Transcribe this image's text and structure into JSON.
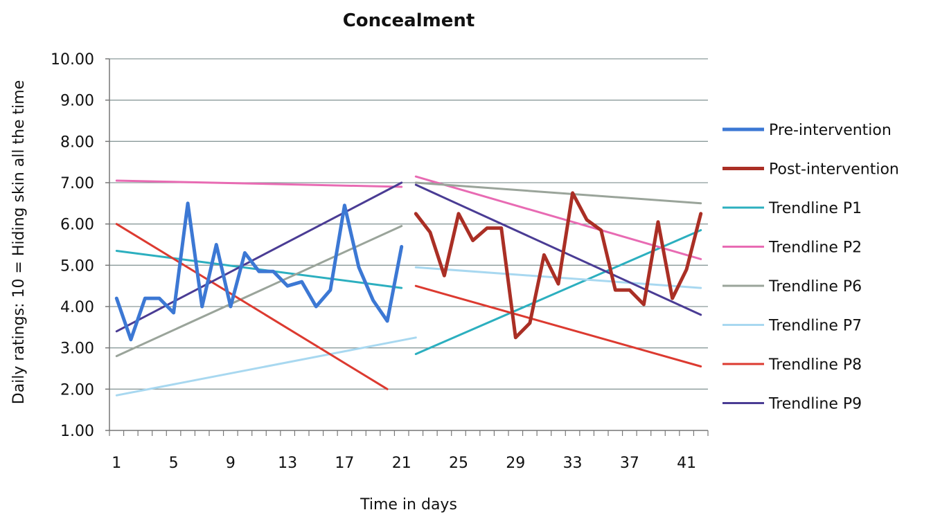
{
  "chart_data": {
    "type": "line",
    "title": "Concealment",
    "xlabel": "Time in days",
    "ylabel": "Daily ratings: 10 = Hiding skin all the time",
    "xlim": [
      1,
      42
    ],
    "ylim": [
      1,
      10
    ],
    "x_ticks": [
      "1",
      "5",
      "9",
      "13",
      "17",
      "21",
      "25",
      "29",
      "33",
      "37",
      "41"
    ],
    "y_ticks": [
      "1.00",
      "2.00",
      "3.00",
      "4.00",
      "5.00",
      "6.00",
      "7.00",
      "8.00",
      "9.00",
      "10.00"
    ],
    "grid": true,
    "legend_position": "right",
    "series": [
      {
        "name": "Pre-intervention",
        "color": "#3c78d4",
        "width": 5,
        "points": [
          [
            1,
            4.2
          ],
          [
            2,
            3.2
          ],
          [
            3,
            4.2
          ],
          [
            4,
            4.2
          ],
          [
            5,
            3.85
          ],
          [
            6,
            6.5
          ],
          [
            7,
            4.0
          ],
          [
            8,
            5.5
          ],
          [
            9,
            4.0
          ],
          [
            10,
            5.3
          ],
          [
            11,
            4.85
          ],
          [
            12,
            4.85
          ],
          [
            13,
            4.5
          ],
          [
            14,
            4.6
          ],
          [
            15,
            4.0
          ],
          [
            16,
            4.4
          ],
          [
            17,
            6.45
          ],
          [
            18,
            4.95
          ],
          [
            19,
            4.15
          ],
          [
            20,
            3.65
          ],
          [
            21,
            5.45
          ]
        ]
      },
      {
        "name": "Post-intervention",
        "color": "#aa2f25",
        "width": 5,
        "points": [
          [
            22,
            6.25
          ],
          [
            23,
            5.8
          ],
          [
            24,
            4.75
          ],
          [
            25,
            6.25
          ],
          [
            26,
            5.6
          ],
          [
            27,
            5.9
          ],
          [
            28,
            5.9
          ],
          [
            29,
            3.25
          ],
          [
            30,
            3.6
          ],
          [
            31,
            5.25
          ],
          [
            32,
            4.55
          ],
          [
            33,
            6.75
          ],
          [
            34,
            6.1
          ],
          [
            35,
            5.85
          ],
          [
            36,
            4.4
          ],
          [
            37,
            4.4
          ],
          [
            38,
            4.05
          ],
          [
            39,
            6.05
          ],
          [
            40,
            4.2
          ],
          [
            41,
            4.9
          ],
          [
            42,
            6.25
          ]
        ]
      },
      {
        "name": "Trendline P1",
        "color": "#2cafbf",
        "width": 3,
        "points": [
          [
            1,
            5.35
          ],
          [
            21,
            4.45
          ],
          [
            22,
            2.85
          ],
          [
            42,
            5.85
          ]
        ]
      },
      {
        "name": "Trendline P2",
        "color": "#e86bb3",
        "width": 3,
        "points": [
          [
            1,
            7.05
          ],
          [
            21,
            6.9
          ],
          [
            22,
            7.15
          ],
          [
            42,
            5.15
          ]
        ]
      },
      {
        "name": "Trendline P6",
        "color": "#9aa49a",
        "width": 3,
        "points": [
          [
            1,
            2.8
          ],
          [
            21,
            5.95
          ],
          [
            22,
            7.0
          ],
          [
            42,
            6.5
          ]
        ]
      },
      {
        "name": "Trendline P7",
        "color": "#a8d8f0",
        "width": 3,
        "points": [
          [
            1,
            1.85
          ],
          [
            22,
            3.25
          ],
          [
            22,
            4.95
          ],
          [
            42,
            4.45
          ]
        ]
      },
      {
        "name": "Trendline P8",
        "color": "#dc3a30",
        "width": 3,
        "points": [
          [
            1,
            6.0
          ],
          [
            20,
            2.0
          ],
          [
            22,
            4.5
          ],
          [
            42,
            2.55
          ]
        ]
      },
      {
        "name": "Trendline P9",
        "color": "#4a3c94",
        "width": 3,
        "points": [
          [
            1,
            3.4
          ],
          [
            21,
            7.0
          ],
          [
            22,
            6.95
          ],
          [
            42,
            3.8
          ]
        ]
      }
    ]
  }
}
